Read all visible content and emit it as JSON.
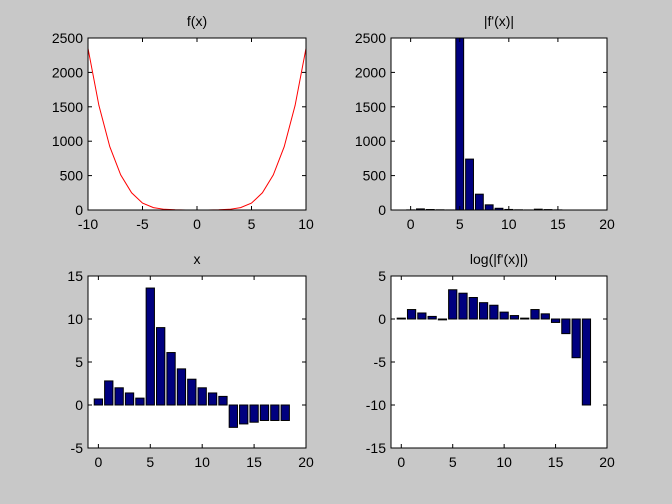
{
  "figure": {
    "background": "#c8c8c8",
    "axes_background": "#ffffff"
  },
  "chart_data": [
    {
      "id": "fx",
      "type": "line",
      "title": "f(x)",
      "xlim": [
        -10,
        10
      ],
      "ylim": [
        0,
        2500
      ],
      "xticks": [
        -10,
        -5,
        0,
        5,
        10
      ],
      "xtick_labels": [
        "-10",
        "-5",
        "0",
        "5",
        "10"
      ],
      "yticks": [
        0,
        500,
        1000,
        1500,
        2000,
        2500
      ],
      "ytick_labels": [
        "0",
        "500",
        "1000",
        "1500",
        "2000",
        "2500"
      ],
      "grid": false,
      "color": "#ff0000",
      "series": [
        {
          "x": [
            -10,
            -9,
            -8,
            -7,
            -6,
            -5,
            -4,
            -3,
            -2,
            -1,
            0,
            1,
            2,
            3,
            4,
            5,
            6,
            7,
            8,
            9,
            10
          ],
          "y": [
            2350,
            1520,
            920,
            510,
            250,
            100,
            35,
            10,
            3,
            0,
            0,
            0,
            3,
            10,
            35,
            100,
            250,
            510,
            920,
            1520,
            2350
          ]
        }
      ]
    },
    {
      "id": "abs-df",
      "type": "bar",
      "title": "|f'(x)|",
      "xlim": [
        -2,
        20
      ],
      "ylim": [
        0,
        2500
      ],
      "xticks": [
        0,
        5,
        10,
        15,
        20
      ],
      "xtick_labels": [
        "0",
        "5",
        "10",
        "15",
        "20"
      ],
      "yticks": [
        0,
        500,
        1000,
        1500,
        2000,
        2500
      ],
      "ytick_labels": [
        "0",
        "500",
        "1000",
        "1500",
        "2000",
        "2500"
      ],
      "grid": false,
      "color": "#00007f",
      "x": [
        0,
        1,
        2,
        3,
        4,
        5,
        6,
        7,
        8,
        9,
        10,
        11,
        12,
        13,
        14,
        15,
        16,
        17,
        18
      ],
      "values": [
        2,
        16,
        7,
        3,
        1,
        2500,
        740,
        230,
        75,
        25,
        8,
        3,
        1,
        12,
        6,
        2,
        0,
        0,
        0
      ]
    },
    {
      "id": "x",
      "type": "bar",
      "title": "x",
      "xlim": [
        -1,
        20
      ],
      "ylim": [
        -5,
        15
      ],
      "xticks": [
        0,
        5,
        10,
        15,
        20
      ],
      "xtick_labels": [
        "0",
        "5",
        "10",
        "15",
        "20"
      ],
      "yticks": [
        -5,
        0,
        5,
        10,
        15
      ],
      "ytick_labels": [
        "-5",
        "0",
        "5",
        "10",
        "15"
      ],
      "grid": false,
      "color": "#00007f",
      "x": [
        0,
        1,
        2,
        3,
        4,
        5,
        6,
        7,
        8,
        9,
        10,
        11,
        12,
        13,
        14,
        15,
        16,
        17,
        18
      ],
      "values": [
        0.7,
        2.8,
        2.0,
        1.4,
        0.8,
        13.6,
        9.0,
        6.1,
        4.2,
        3.0,
        2.0,
        1.4,
        1.0,
        -2.6,
        -2.2,
        -2.0,
        -1.8,
        -1.8,
        -1.8
      ]
    },
    {
      "id": "log-abs-df",
      "type": "bar",
      "title": "log(|f'(x)|)",
      "xlim": [
        -1,
        20
      ],
      "ylim": [
        -15,
        5
      ],
      "xticks": [
        0,
        5,
        10,
        15,
        20
      ],
      "xtick_labels": [
        "0",
        "5",
        "10",
        "15",
        "20"
      ],
      "yticks": [
        -15,
        -10,
        -5,
        0,
        5
      ],
      "ytick_labels": [
        "-15",
        "-10",
        "-5",
        "0",
        "5"
      ],
      "grid": false,
      "color": "#00007f",
      "x": [
        0,
        1,
        2,
        3,
        4,
        5,
        6,
        7,
        8,
        9,
        10,
        11,
        12,
        13,
        14,
        15,
        16,
        17,
        18
      ],
      "values": [
        0.1,
        1.1,
        0.7,
        0.3,
        -0.1,
        3.4,
        3.0,
        2.5,
        1.9,
        1.6,
        0.8,
        0.4,
        0.1,
        1.1,
        0.6,
        -0.4,
        -1.7,
        -4.5,
        -10.0
      ]
    }
  ]
}
